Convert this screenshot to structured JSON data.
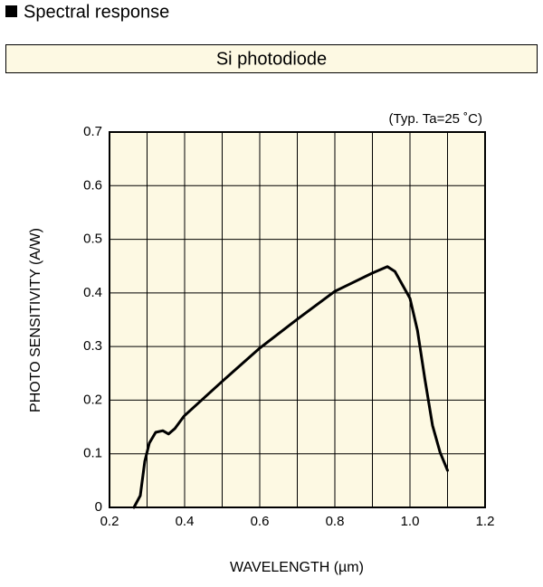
{
  "header": {
    "title": "Spectral response",
    "subtitle": "Si photodiode"
  },
  "chart_data": {
    "type": "line",
    "annotation": "(Typ. Ta=25 ˚C)",
    "xlabel": "WAVELENGTH (µm)",
    "ylabel": "PHOTO SENSITIVITY (A/W)",
    "x": [
      0.265,
      0.282,
      0.294,
      0.306,
      0.323,
      0.342,
      0.357,
      0.374,
      0.398,
      0.5,
      0.6,
      0.7,
      0.8,
      0.9,
      0.94,
      0.96,
      1.0,
      1.02,
      1.04,
      1.06,
      1.08,
      1.1
    ],
    "values": [
      0,
      0.022,
      0.086,
      0.12,
      0.14,
      0.143,
      0.137,
      0.147,
      0.17,
      0.235,
      0.297,
      0.351,
      0.403,
      0.437,
      0.449,
      0.44,
      0.39,
      0.33,
      0.238,
      0.153,
      0.103,
      0.069
    ],
    "color": "#000000",
    "xlim": [
      0.2,
      1.2
    ],
    "xticks": [
      0.2,
      0.4,
      0.6,
      0.8,
      {
        "value": 1,
        "label": "1.0"
      },
      1.2
    ],
    "x_minor_ticks": [
      0.3,
      0.5,
      0.7,
      0.9,
      1.1
    ],
    "ylim": [
      0,
      0.7
    ],
    "yticks": [
      0,
      0.1,
      0.2,
      0.3,
      0.4,
      0.5,
      0.6,
      0.7
    ],
    "grid": true,
    "background": "#fdf9e3"
  }
}
